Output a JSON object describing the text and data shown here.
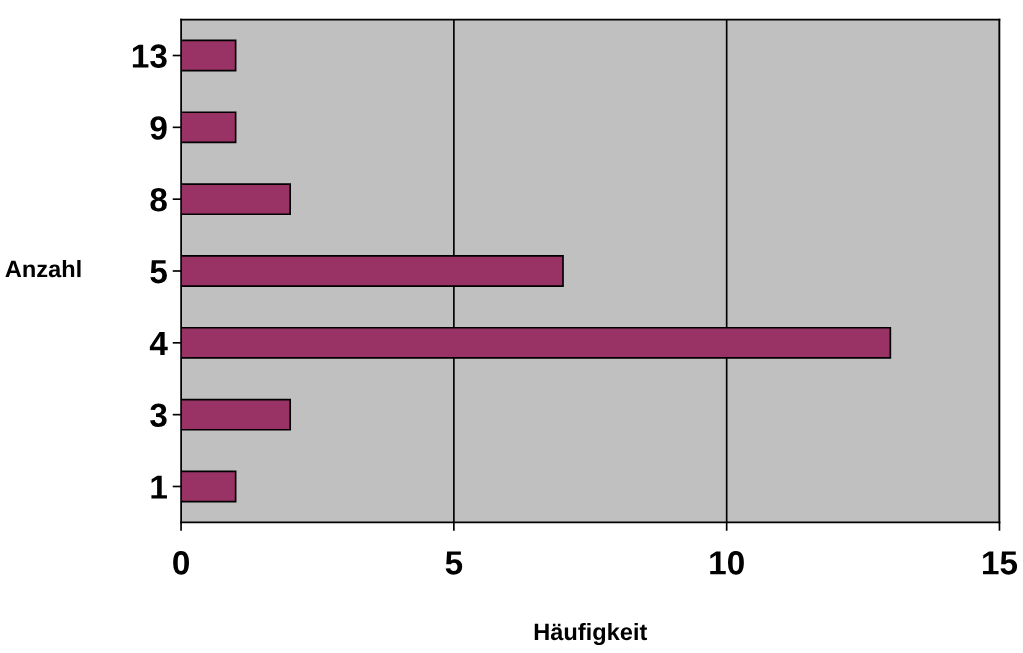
{
  "chart_data": {
    "type": "bar",
    "orientation": "horizontal",
    "xlabel": "Häufigkeit",
    "ylabel": "Anzahl",
    "categories": [
      "13",
      "9",
      "8",
      "5",
      "4",
      "3",
      "1"
    ],
    "values": [
      1,
      1,
      2,
      7,
      13,
      2,
      1
    ],
    "color": "#993366",
    "xlim": [
      0,
      15
    ],
    "xticks": [
      0,
      5,
      10,
      15
    ],
    "grid": "x"
  }
}
